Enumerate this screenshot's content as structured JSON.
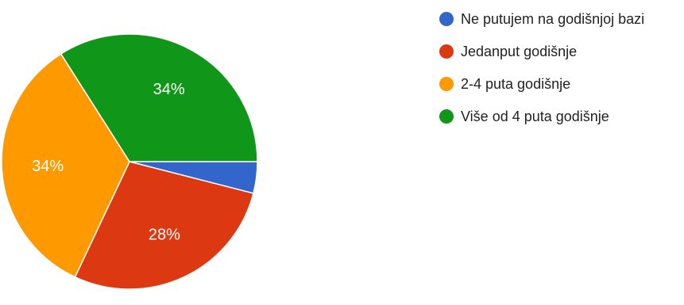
{
  "chart_data": {
    "type": "pie",
    "title": "",
    "legend_position": "right",
    "slices": [
      {
        "name": "Ne putujem na godišnjoj bazi",
        "value": 4,
        "label": "",
        "color": "#3366cc"
      },
      {
        "name": "Jedanput godišnje",
        "value": 28,
        "label": "28%",
        "color": "#dc3912"
      },
      {
        "name": "2-4 puta godišnje",
        "value": 34,
        "label": "34%",
        "color": "#ff9900"
      },
      {
        "name": "Više od 4 puta godišnje",
        "value": 34,
        "label": "34%",
        "color": "#109618"
      }
    ]
  }
}
